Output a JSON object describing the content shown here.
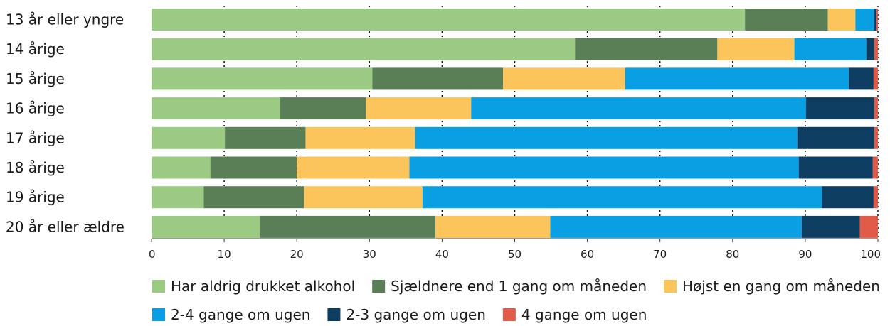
{
  "chart_data": {
    "type": "bar",
    "orientation": "horizontal",
    "stacked": true,
    "title": "",
    "xlabel": "",
    "ylabel": "",
    "xlim": [
      0,
      100
    ],
    "xticks": [
      0,
      10,
      20,
      30,
      40,
      50,
      60,
      70,
      80,
      90,
      100
    ],
    "grid": "vertical-dotted",
    "legend_position": "bottom",
    "categories": [
      "13 år eller yngre",
      "14 årige",
      "15 årige",
      "16 årige",
      "17 årige",
      "18 årige",
      "19 årige",
      "20 år eller ældre"
    ],
    "series": [
      {
        "name": "Har aldrig drukket alkohol",
        "color": "#9bca82",
        "values": [
          81.7,
          58.3,
          30.4,
          17.7,
          10.1,
          8.1,
          7.2,
          14.9
        ]
      },
      {
        "name": "Sjældnere end 1 gang om måneden",
        "color": "#5a7e56",
        "values": [
          11.4,
          19.6,
          18.0,
          11.8,
          11.1,
          11.9,
          13.8,
          24.2
        ]
      },
      {
        "name": "Højst en gang om måneden",
        "color": "#fbc55c",
        "values": [
          3.8,
          10.6,
          16.8,
          14.5,
          15.1,
          15.5,
          16.3,
          15.8
        ]
      },
      {
        "name": "2-4 gange om ugen",
        "color": "#0a9fe2",
        "values": [
          2.6,
          9.9,
          30.8,
          46.1,
          52.6,
          53.6,
          55.0,
          34.6
        ]
      },
      {
        "name": "2-3 gange om ugen",
        "color": "#0d3d61",
        "values": [
          0.3,
          1.1,
          3.4,
          9.4,
          10.6,
          10.2,
          7.1,
          8.0
        ]
      },
      {
        "name": "4 gange om ugen",
        "color": "#e05b48",
        "values": [
          0.2,
          0.5,
          0.6,
          0.5,
          0.5,
          0.7,
          0.6,
          2.5
        ]
      }
    ]
  }
}
